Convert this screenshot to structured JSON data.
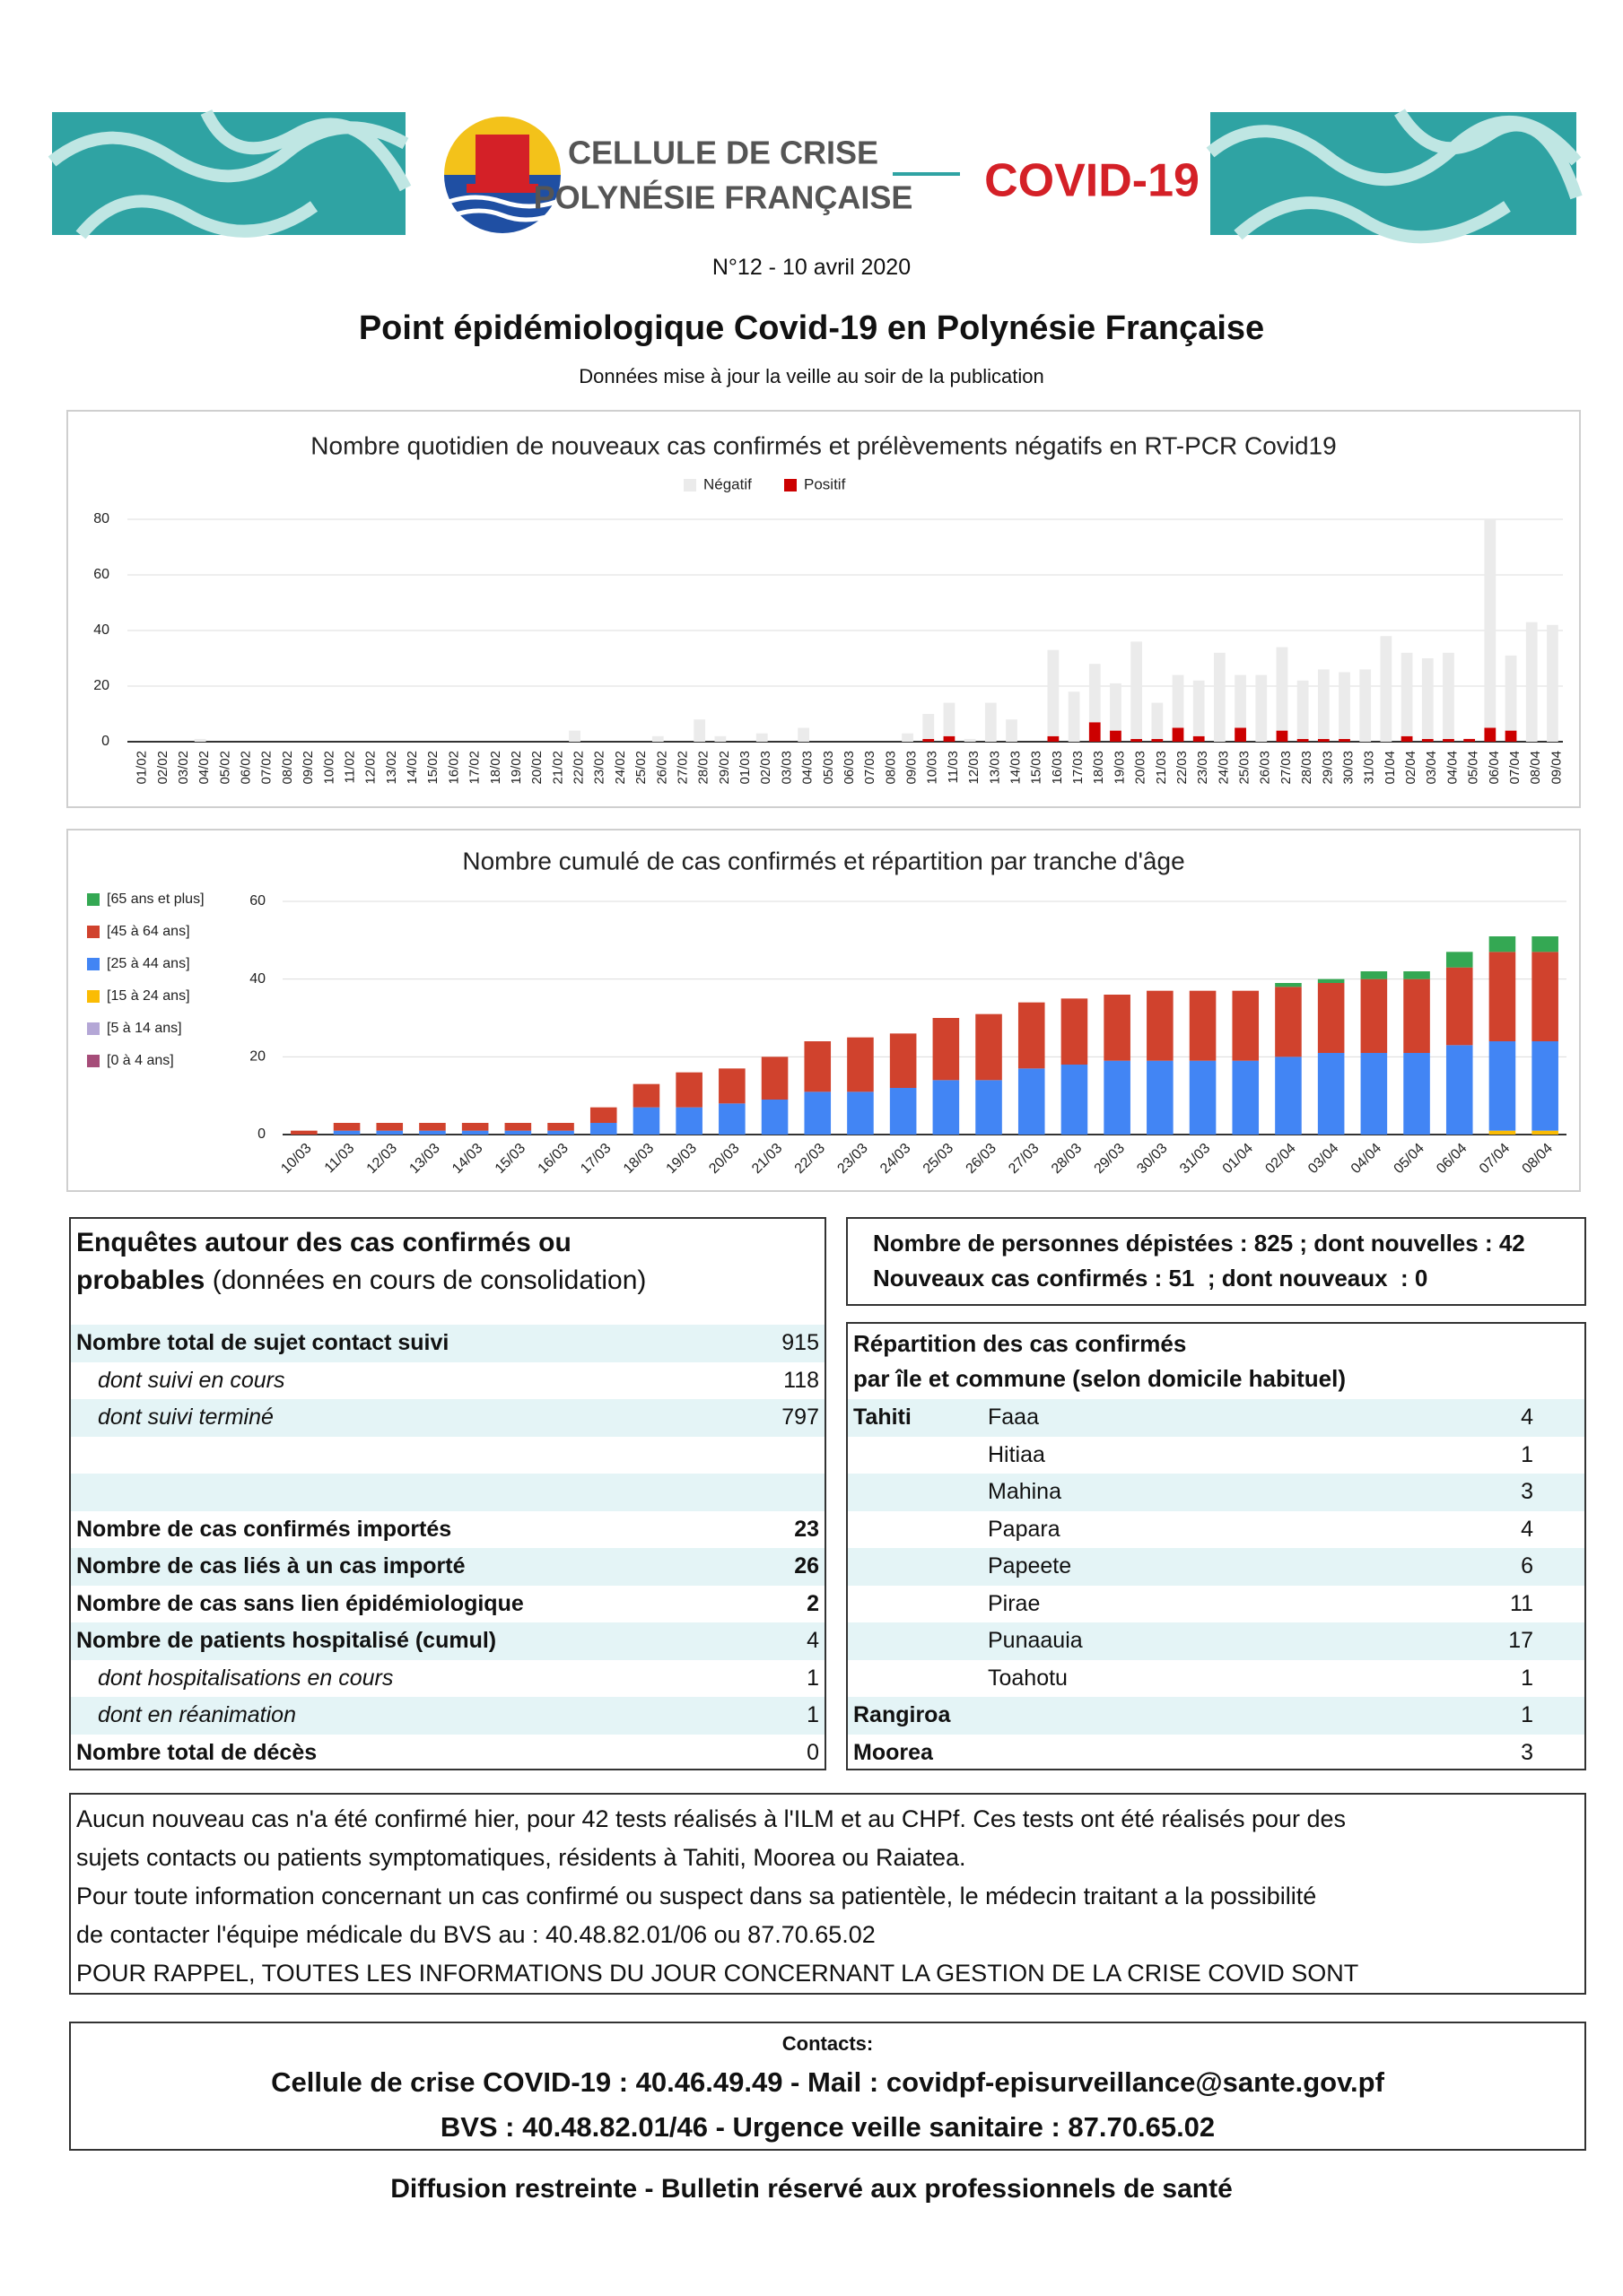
{
  "header": {
    "org_line1": "CELLULE DE CRISE",
    "org_line2": "POLYNÉSIE FRANÇAISE",
    "badge": "COVID-19",
    "issue": "N°12 - 10 avril 2020",
    "title": "Point épidémiologique Covid-19 en Polynésie Française",
    "subtitle": "Données mise à jour la veille au soir de la publication"
  },
  "chart_data": [
    {
      "type": "stacked_bar",
      "title": "Nombre quotidien de nouveaux cas confirmés et prélèvements négatifs en RT-PCR Covid19",
      "categories": [
        "01/02",
        "02/02",
        "03/02",
        "04/02",
        "05/02",
        "06/02",
        "07/02",
        "08/02",
        "09/02",
        "10/02",
        "11/02",
        "12/02",
        "13/02",
        "14/02",
        "15/02",
        "16/02",
        "17/02",
        "18/02",
        "19/02",
        "20/02",
        "21/02",
        "22/02",
        "23/02",
        "24/02",
        "25/02",
        "26/02",
        "27/02",
        "28/02",
        "29/02",
        "01/03",
        "02/03",
        "03/03",
        "04/03",
        "05/03",
        "06/03",
        "07/03",
        "08/03",
        "09/03",
        "10/03",
        "11/03",
        "12/03",
        "13/03",
        "14/03",
        "15/03",
        "16/03",
        "17/03",
        "18/03",
        "19/03",
        "20/03",
        "21/03",
        "22/03",
        "23/03",
        "24/03",
        "25/03",
        "26/03",
        "27/03",
        "28/03",
        "29/03",
        "30/03",
        "31/03",
        "01/04",
        "02/04",
        "03/04",
        "04/04",
        "05/04",
        "06/04",
        "07/04",
        "08/04",
        "09/04"
      ],
      "series": [
        {
          "name": "Négatif",
          "color": "#ebebeb",
          "values": [
            0,
            0,
            0,
            1,
            0,
            0,
            0,
            0,
            0,
            0,
            0,
            0,
            0,
            0,
            0,
            0,
            0,
            0,
            0,
            0,
            0,
            4,
            0,
            0,
            0,
            2,
            0,
            8,
            2,
            0,
            3,
            0,
            5,
            0,
            0,
            0,
            0,
            3,
            9,
            12,
            1,
            14,
            8,
            0,
            31,
            18,
            21,
            17,
            35,
            13,
            19,
            20,
            32,
            19,
            24,
            30,
            21,
            25,
            24,
            26,
            38,
            30,
            29,
            31,
            0,
            75,
            27,
            43,
            42
          ]
        },
        {
          "name": "Positif",
          "color": "#cc0000",
          "values": [
            0,
            0,
            0,
            0,
            0,
            0,
            0,
            0,
            0,
            0,
            0,
            0,
            0,
            0,
            0,
            0,
            0,
            0,
            0,
            0,
            0,
            0,
            0,
            0,
            0,
            0,
            0,
            0,
            0,
            0,
            0,
            0,
            0,
            0,
            0,
            0,
            0,
            0,
            1,
            2,
            0,
            0,
            0,
            0,
            2,
            0,
            7,
            4,
            1,
            1,
            5,
            2,
            0,
            5,
            0,
            4,
            1,
            1,
            1,
            0,
            0,
            2,
            1,
            1,
            1,
            5,
            4,
            0,
            0
          ]
        }
      ],
      "ylim": [
        0,
        80
      ],
      "yticks": [
        0,
        20,
        40,
        60,
        80
      ],
      "grid": true,
      "legend": "top"
    },
    {
      "type": "stacked_bar",
      "title": "Nombre cumulé de cas confirmés et répartition par tranche d'âge",
      "categories": [
        "10/03",
        "11/03",
        "12/03",
        "13/03",
        "14/03",
        "15/03",
        "16/03",
        "17/03",
        "18/03",
        "19/03",
        "20/03",
        "21/03",
        "22/03",
        "23/03",
        "24/03",
        "25/03",
        "26/03",
        "27/03",
        "28/03",
        "29/03",
        "30/03",
        "31/03",
        "01/04",
        "02/04",
        "03/04",
        "04/04",
        "05/04",
        "06/04",
        "07/04",
        "08/04"
      ],
      "series": [
        {
          "name": "[65 ans et plus]",
          "color": "#34a853",
          "values": [
            0,
            0,
            0,
            0,
            0,
            0,
            0,
            0,
            0,
            0,
            0,
            0,
            0,
            0,
            0,
            0,
            0,
            0,
            0,
            0,
            0,
            0,
            0,
            1,
            1,
            2,
            2,
            4,
            4,
            4
          ]
        },
        {
          "name": "[45 à 64 ans]",
          "color": "#d0422d",
          "values": [
            1,
            2,
            2,
            2,
            2,
            2,
            2,
            4,
            6,
            9,
            9,
            11,
            13,
            14,
            14,
            16,
            17,
            17,
            17,
            17,
            18,
            18,
            18,
            18,
            18,
            19,
            19,
            20,
            23,
            23
          ]
        },
        {
          "name": "[25 à 44 ans]",
          "color": "#4285f4",
          "values": [
            0,
            1,
            1,
            1,
            1,
            1,
            1,
            3,
            7,
            7,
            8,
            9,
            11,
            11,
            12,
            14,
            14,
            17,
            18,
            19,
            19,
            19,
            19,
            20,
            21,
            21,
            21,
            23,
            23,
            23
          ]
        },
        {
          "name": "[15 à 24 ans]",
          "color": "#fbbc04",
          "values": [
            0,
            0,
            0,
            0,
            0,
            0,
            0,
            0,
            0,
            0,
            0,
            0,
            0,
            0,
            0,
            0,
            0,
            0,
            0,
            0,
            0,
            0,
            0,
            0,
            0,
            0,
            0,
            0,
            1,
            1
          ]
        },
        {
          "name": "[5 à 14 ans]",
          "color": "#b4a7d6",
          "values": [
            0,
            0,
            0,
            0,
            0,
            0,
            0,
            0,
            0,
            0,
            0,
            0,
            0,
            0,
            0,
            0,
            0,
            0,
            0,
            0,
            0,
            0,
            0,
            0,
            0,
            0,
            0,
            0,
            0,
            0
          ]
        },
        {
          "name": "[0 à 4 ans]",
          "color": "#a64d79",
          "values": [
            0,
            0,
            0,
            0,
            0,
            0,
            0,
            0,
            0,
            0,
            0,
            0,
            0,
            0,
            0,
            0,
            0,
            0,
            0,
            0,
            0,
            0,
            0,
            0,
            0,
            0,
            0,
            0,
            0,
            0
          ]
        }
      ],
      "ylim": [
        0,
        60
      ],
      "yticks": [
        0,
        20,
        40,
        60
      ],
      "grid": true,
      "legend": "left"
    }
  ],
  "investigations": {
    "title": [
      "Enquêtes autour des cas confirmés ou",
      "probables"
    ],
    "note": "(données en cours de consolidation)",
    "rows": [
      [
        "Nombre total de sujet contact suivi",
        "915"
      ],
      [
        "dont suivi en cours",
        "118"
      ],
      [
        "dont suivi terminé",
        "797"
      ],
      [
        "Nombre de cas confirmés importés",
        "23"
      ],
      [
        "Nombre de cas liés à un cas importé",
        "26"
      ],
      [
        "Nombre de cas sans lien épidémiologique",
        "2"
      ],
      [
        "Nombre de patients hospitalisé (cumul)",
        "4"
      ],
      [
        "dont hospitalisations en cours",
        "1"
      ],
      [
        "dont en réanimation",
        "1"
      ],
      [
        "Nombre total de décès",
        "0"
      ]
    ]
  },
  "screening": [
    "Nombre de personnes dépistées : 825 ; dont nouvelles : 42",
    "Nouveaux cas confirmés : 51  ; dont nouveaux  : 0"
  ],
  "distribution": {
    "title": [
      "Répartition des cas confirmés",
      "par île et commune (selon domicile habituel)"
    ],
    "islands": [
      {
        "name": "Tahiti",
        "communes": [
          [
            "Faaa",
            "4"
          ],
          [
            "Hitiaa",
            "1"
          ],
          [
            "Mahina",
            "3"
          ],
          [
            "Papara",
            "4"
          ],
          [
            "Papeete",
            "6"
          ],
          [
            "Pirae",
            "11"
          ],
          [
            "Punaauia",
            "17"
          ],
          [
            "Toahotu",
            "1"
          ]
        ]
      },
      {
        "name": "Rangiroa",
        "value": "1"
      },
      {
        "name": "Moorea",
        "value": "3"
      }
    ]
  },
  "notes": [
    "Aucun nouveau cas n'a été confirmé hier, pour 42 tests réalisés à l'ILM et au CHPf. Ces tests ont été réalisés pour des",
    "sujets contacts ou patients symptomatiques, résidents à Tahiti, Moorea ou Raiatea.",
    "Pour toute information concernant un cas confirmé ou suspect dans sa patientèle, le médecin traitant a la possibilité",
    "de contacter l'équipe médicale du BVS au : 40.48.82.01/06 ou 87.70.65.02",
    "POUR RAPPEL, TOUTES LES INFORMATIONS DU JOUR CONCERNANT LA GESTION DE LA CRISE COVID SONT"
  ],
  "contacts": {
    "heading": "Contacts:",
    "lines": [
      "Cellule de crise COVID-19 : 40.46.49.49 - Mail : covidpf-episurveillance@sante.gov.pf",
      "BVS : 40.48.82.01/46 - Urgence veille sanitaire : 87.70.65.02"
    ]
  },
  "footer": "Diffusion restreinte - Bulletin réservé aux professionnels de santé"
}
